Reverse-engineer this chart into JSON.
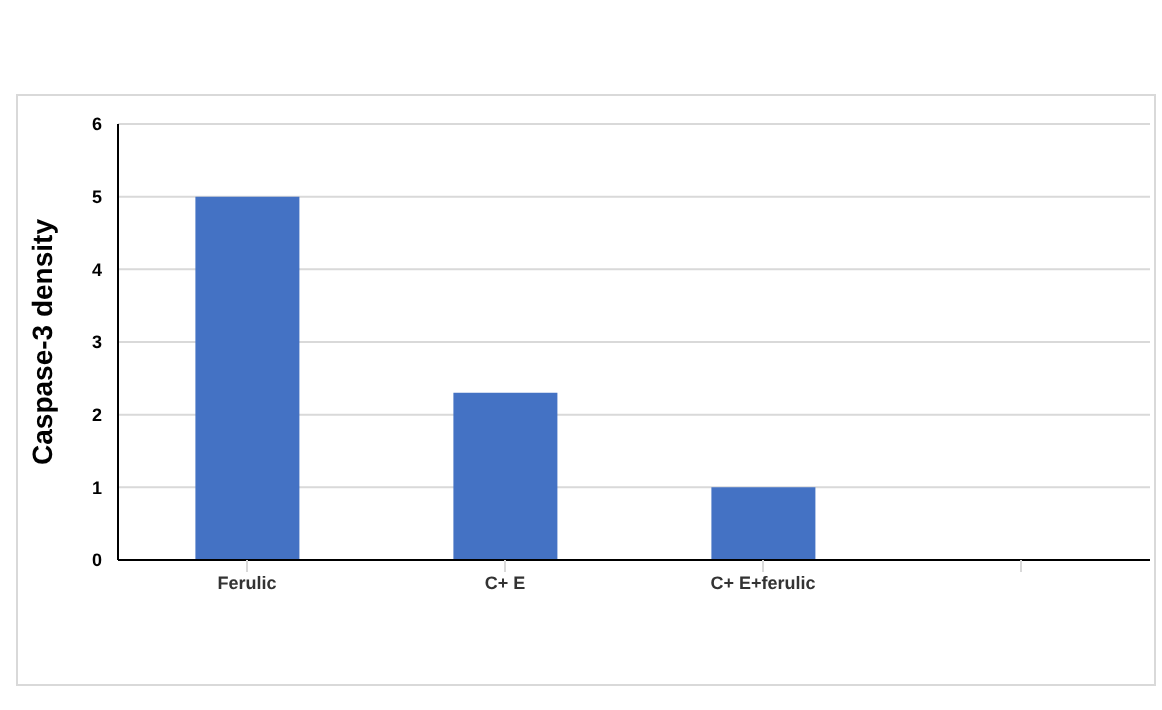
{
  "chart_data": {
    "type": "bar",
    "ylabel": "Caspase-3 density",
    "categories": [
      "Ferulic",
      "C+ E",
      "C+ E+ferulic",
      null
    ],
    "values": [
      5,
      2.3,
      1,
      null
    ],
    "color": "#4472c4",
    "ylim": [
      0,
      6
    ],
    "yticks": [
      0,
      1,
      2,
      3,
      4,
      5,
      6
    ],
    "grid": "y"
  }
}
